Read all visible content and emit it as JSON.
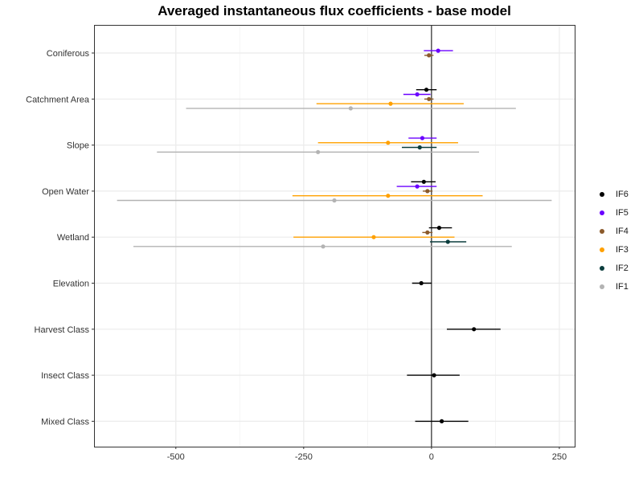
{
  "chart_data": {
    "type": "scatter",
    "title": "Averaged instantaneous flux coefficients - base model",
    "xlabel": "",
    "ylabel": "",
    "xlim": [
      -660,
      280
    ],
    "x_ticks": [
      -500,
      -250,
      0,
      250
    ],
    "x_tick_labels": [
      "-500",
      "-250",
      "0",
      "250"
    ],
    "reference_line_x": 0,
    "grid": true,
    "legend_position": "right",
    "categories": [
      "Coniferous",
      "Catchment Area",
      "Slope",
      "Open Water",
      "Wetland",
      "Elevation",
      "Harvest Class",
      "Insect Class",
      "Mixed Class"
    ],
    "series": [
      {
        "name": "IF6",
        "color": "#000000",
        "points": [
          {
            "category": "Catchment Area",
            "x": -10,
            "lo": -30,
            "hi": 10
          },
          {
            "category": "Open Water",
            "x": -15,
            "lo": -40,
            "hi": 8
          },
          {
            "category": "Wetland",
            "x": 15,
            "lo": -5,
            "hi": 40
          },
          {
            "category": "Elevation",
            "x": -20,
            "lo": -38,
            "hi": 0
          },
          {
            "category": "Harvest Class",
            "x": 83,
            "lo": 30,
            "hi": 135
          },
          {
            "category": "Insect Class",
            "x": 5,
            "lo": -48,
            "hi": 55
          },
          {
            "category": "Mixed Class",
            "x": 20,
            "lo": -32,
            "hi": 72
          }
        ]
      },
      {
        "name": "IF5",
        "color": "#6a00ff",
        "points": [
          {
            "category": "Coniferous",
            "x": 13,
            "lo": -15,
            "hi": 42
          },
          {
            "category": "Catchment Area",
            "x": -28,
            "lo": -55,
            "hi": -2
          },
          {
            "category": "Slope",
            "x": -18,
            "lo": -45,
            "hi": 10
          },
          {
            "category": "Open Water",
            "x": -28,
            "lo": -68,
            "hi": 10
          }
        ]
      },
      {
        "name": "IF4",
        "color": "#8b5a2b",
        "points": [
          {
            "category": "Coniferous",
            "x": -5,
            "lo": -14,
            "hi": 4
          },
          {
            "category": "Catchment Area",
            "x": -5,
            "lo": -14,
            "hi": 4
          },
          {
            "category": "Open Water",
            "x": -8,
            "lo": -17,
            "hi": 2
          },
          {
            "category": "Wetland",
            "x": -8,
            "lo": -18,
            "hi": 2
          }
        ]
      },
      {
        "name": "IF3",
        "color": "#ffa000",
        "points": [
          {
            "category": "Catchment Area",
            "x": -80,
            "lo": -225,
            "hi": 63
          },
          {
            "category": "Slope",
            "x": -85,
            "lo": -222,
            "hi": 52
          },
          {
            "category": "Open Water",
            "x": -85,
            "lo": -272,
            "hi": 100
          },
          {
            "category": "Wetland",
            "x": -113,
            "lo": -270,
            "hi": 45
          }
        ]
      },
      {
        "name": "IF2",
        "color": "#0b3d3d",
        "points": [
          {
            "category": "Slope",
            "x": -23,
            "lo": -58,
            "hi": 10
          },
          {
            "category": "Wetland",
            "x": 32,
            "lo": -3,
            "hi": 68
          }
        ]
      },
      {
        "name": "IF1",
        "color": "#b3b3b3",
        "points": [
          {
            "category": "Catchment Area",
            "x": -158,
            "lo": -480,
            "hi": 165
          },
          {
            "category": "Slope",
            "x": -222,
            "lo": -537,
            "hi": 93
          },
          {
            "category": "Open Water",
            "x": -190,
            "lo": -615,
            "hi": 235
          },
          {
            "category": "Wetland",
            "x": -212,
            "lo": -583,
            "hi": 157
          }
        ]
      }
    ]
  },
  "legend": {
    "entries": [
      {
        "label": "IF6",
        "color": "#000000"
      },
      {
        "label": "IF5",
        "color": "#6a00ff"
      },
      {
        "label": "IF4",
        "color": "#8b5a2b"
      },
      {
        "label": "IF3",
        "color": "#ffa000"
      },
      {
        "label": "IF2",
        "color": "#0b3d3d"
      },
      {
        "label": "IF1",
        "color": "#b3b3b3"
      }
    ]
  }
}
